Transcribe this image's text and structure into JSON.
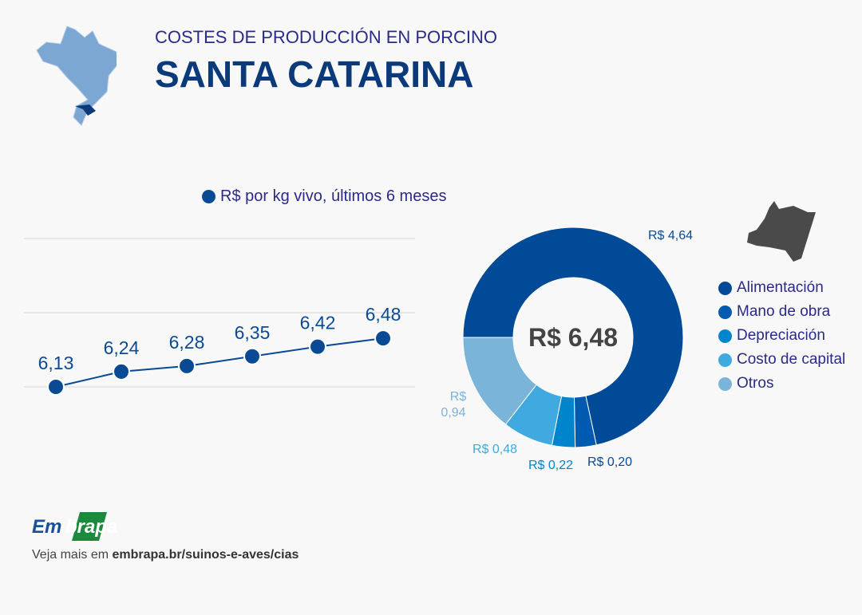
{
  "header": {
    "subtitle": "COSTES DE PRODUCCIÓN EN PORCINO",
    "title": "SANTA CATARINA",
    "map_icon": "brazil-map-icon"
  },
  "footer": {
    "logo": "Embrapa",
    "text_prefix": "Veja mais em ",
    "link": "embrapa.br/suinos-e-aves/cias"
  },
  "chart_data": [
    {
      "type": "line",
      "legend": "R$ por kg vivo, últimos 6 meses",
      "color": "#0a4a94",
      "values": [
        6.13,
        6.24,
        6.28,
        6.35,
        6.42,
        6.48
      ],
      "labels": [
        "6,13",
        "6,24",
        "6,28",
        "6,35",
        "6,42",
        "6,48"
      ],
      "grid": true,
      "ylim": [
        6.13,
        7.2
      ]
    },
    {
      "type": "pie",
      "donut": true,
      "center_label": "R$ 6,48",
      "slices": [
        {
          "name": "Alimentación",
          "value": 4.64,
          "label": "R$ 4,64",
          "color": "#004a98"
        },
        {
          "name": "Mano de obra",
          "value": 0.2,
          "label": "R$ 0,20",
          "color": "#005bb0"
        },
        {
          "name": "Depreciación",
          "value": 0.22,
          "label": "R$ 0,22",
          "color": "#0085cc"
        },
        {
          "name": "Costo de capital",
          "value": 0.48,
          "label": "R$ 0,48",
          "color": "#3fa9e0"
        },
        {
          "name": "Otros",
          "value": 0.94,
          "label": "R$ 0,94",
          "color": "#7ab4d8"
        }
      ],
      "legend_placement": "right",
      "icon": "pig-icon"
    }
  ]
}
